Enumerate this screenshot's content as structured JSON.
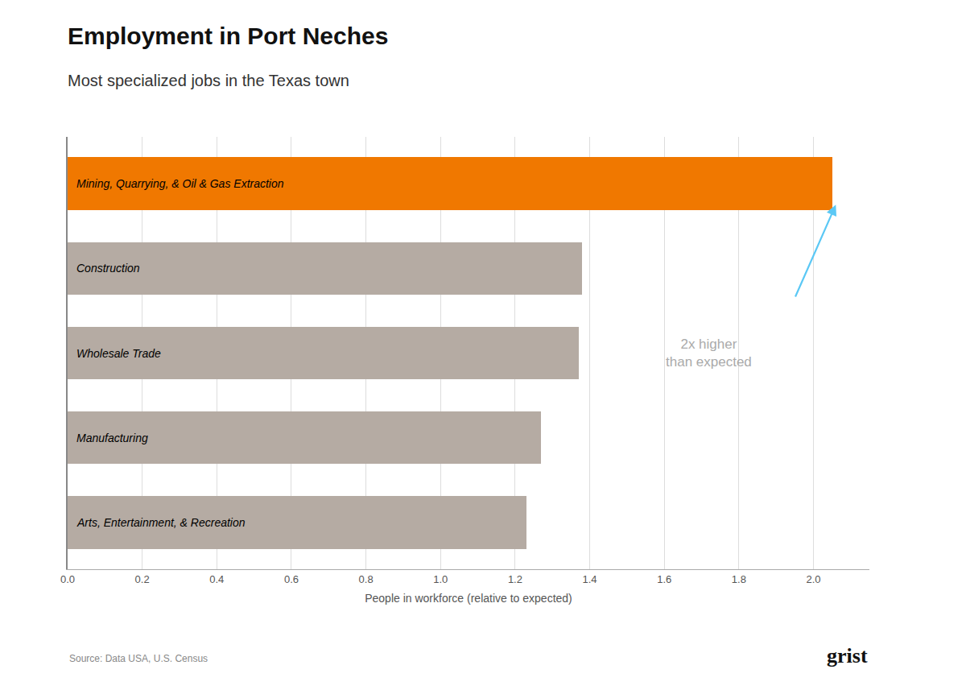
{
  "chart_data": {
    "type": "bar",
    "orientation": "horizontal",
    "title": "Employment in Port Neches",
    "subtitle": "Most specialized jobs in the Texas town",
    "categories": [
      "Arts, Entertainment, & Recreation",
      "Manufacturing",
      "Wholesale Trade",
      "Construction",
      "Mining, Quarrying, & Oil & Gas Extraction"
    ],
    "values": [
      1.23,
      1.27,
      1.37,
      1.38,
      2.05
    ],
    "colors": [
      "#b5aba3",
      "#b5aba3",
      "#b5aba3",
      "#b5aba3",
      "#f07800"
    ],
    "xlabel": "People in workforce (relative to expected)",
    "xlim": [
      0,
      2.15
    ],
    "xticks": [
      {
        "value": 0.0,
        "label": "0.0"
      },
      0.2,
      0.4,
      0.6,
      0.8,
      {
        "value": 1.0,
        "label": "1.0"
      },
      1.2,
      1.4,
      1.6,
      1.8,
      {
        "value": 2.0,
        "label": "2.0"
      }
    ],
    "grid": true,
    "tick_labels": "x",
    "annotation": {
      "text": "2x higher\nthan expected",
      "color": "#aaaaaa",
      "arrow_color": "#5bc8f5"
    },
    "source": "Source: Data USA, U.S. Census",
    "logo": "grist"
  }
}
